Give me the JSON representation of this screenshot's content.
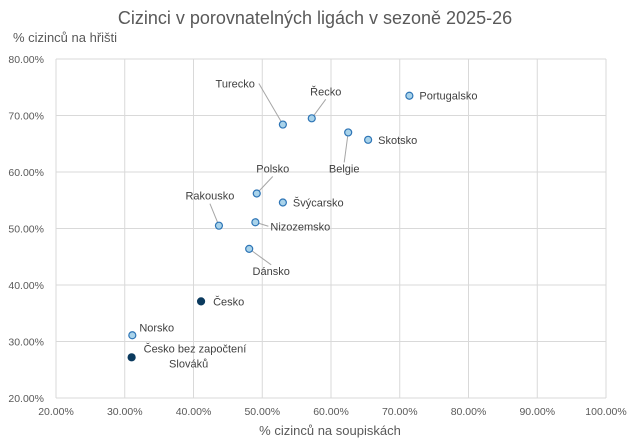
{
  "chart_data": {
    "type": "scatter",
    "title": "Cizinci v porovnatelných ligách v sezoně 2025-26",
    "xlabel": "% cizinců na soupiskách",
    "ylabel": "% cizinců na hřišti",
    "xlim": [
      20,
      100
    ],
    "ylim": [
      20,
      80
    ],
    "xticks": [
      "20.00%",
      "30.00%",
      "40.00%",
      "50.00%",
      "60.00%",
      "70.00%",
      "80.00%",
      "90.00%",
      "100.00%"
    ],
    "yticks": [
      "20.00%",
      "30.00%",
      "40.00%",
      "50.00%",
      "60.00%",
      "70.00%",
      "80.00%"
    ],
    "grid": true,
    "colors": {
      "other": "#a9d3ea",
      "other_edge": "#2e75b6",
      "czech": "#0b3a5e"
    },
    "points": [
      {
        "label": "Portugalsko",
        "x": 71.4,
        "y": 73.5,
        "group": "other"
      },
      {
        "label": "Turecko",
        "x": 53.0,
        "y": 68.4,
        "group": "other"
      },
      {
        "label": "Řecko",
        "x": 57.2,
        "y": 69.5,
        "group": "other"
      },
      {
        "label": "Belgie",
        "x": 62.5,
        "y": 67.0,
        "group": "other"
      },
      {
        "label": "Skotsko",
        "x": 65.4,
        "y": 65.7,
        "group": "other"
      },
      {
        "label": "Polsko",
        "x": 49.2,
        "y": 56.2,
        "group": "other"
      },
      {
        "label": "Švýcarsko",
        "x": 53.0,
        "y": 54.6,
        "group": "other"
      },
      {
        "label": "Rakousko",
        "x": 43.7,
        "y": 50.5,
        "group": "other"
      },
      {
        "label": "Nizozemsko",
        "x": 49.0,
        "y": 51.1,
        "group": "other"
      },
      {
        "label": "Dánsko",
        "x": 48.1,
        "y": 46.4,
        "group": "other"
      },
      {
        "label": "Česko",
        "x": 41.1,
        "y": 37.1,
        "group": "czech"
      },
      {
        "label": "Norsko",
        "x": 31.1,
        "y": 31.1,
        "group": "other"
      },
      {
        "label": "Česko bez započtení Slováků",
        "label_lines": [
          "Česko bez započtení",
          "Slováků"
        ],
        "x": 31.0,
        "y": 27.2,
        "group": "czech"
      }
    ]
  }
}
